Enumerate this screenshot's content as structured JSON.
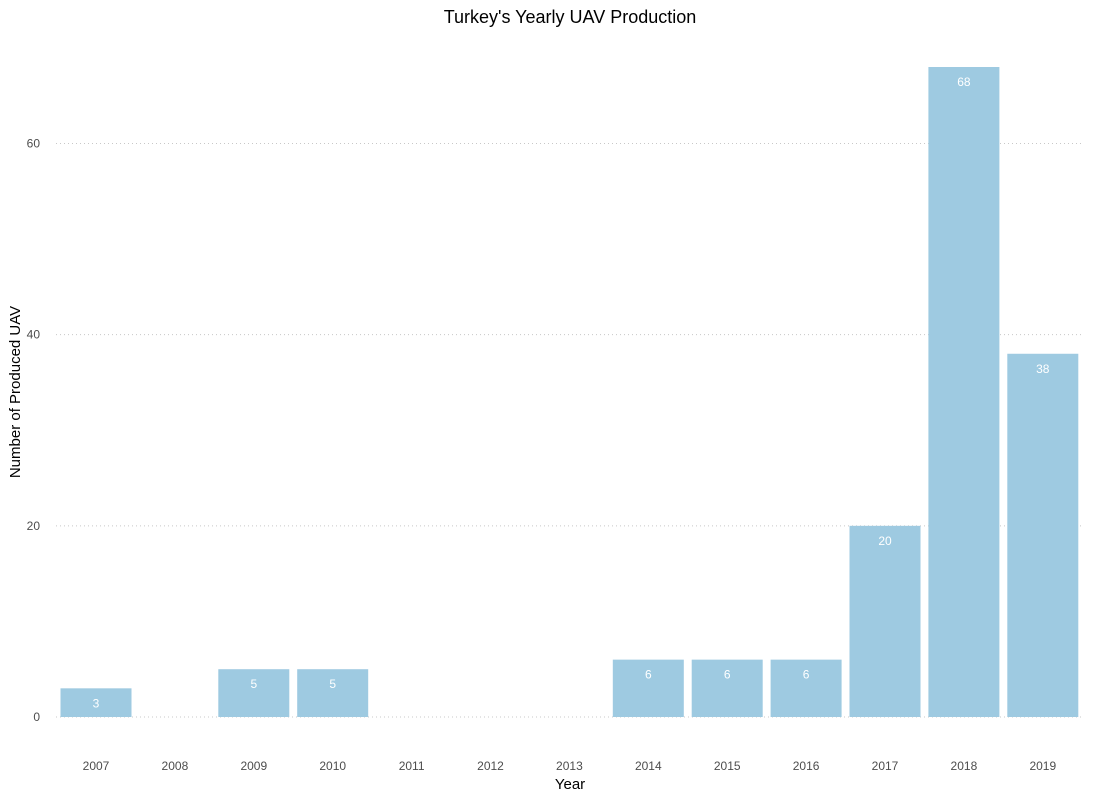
{
  "chart_data": {
    "type": "bar",
    "title": "Turkey's Yearly UAV Production",
    "xlabel": "Year",
    "ylabel": "Number of Produced UAV",
    "categories": [
      "2007",
      "2008",
      "2009",
      "2010",
      "2011",
      "2012",
      "2013",
      "2014",
      "2015",
      "2016",
      "2017",
      "2018",
      "2019"
    ],
    "values": [
      3,
      0,
      5,
      5,
      0,
      0,
      0,
      6,
      6,
      6,
      20,
      68,
      38
    ],
    "data_labels": [
      "3",
      "",
      "5",
      "5",
      "",
      "",
      "",
      "6",
      "6",
      "6",
      "20",
      "68",
      "38"
    ],
    "yticks": [
      0,
      20,
      40,
      60
    ],
    "ylim": [
      0,
      68
    ],
    "grid": "horizontal-dotted",
    "legend": "none",
    "colors": {
      "bar": "#9ecae1",
      "bar_label": "#ffffff",
      "grid": "#c8c8c8",
      "tick_text": "#4d4d4d"
    }
  }
}
